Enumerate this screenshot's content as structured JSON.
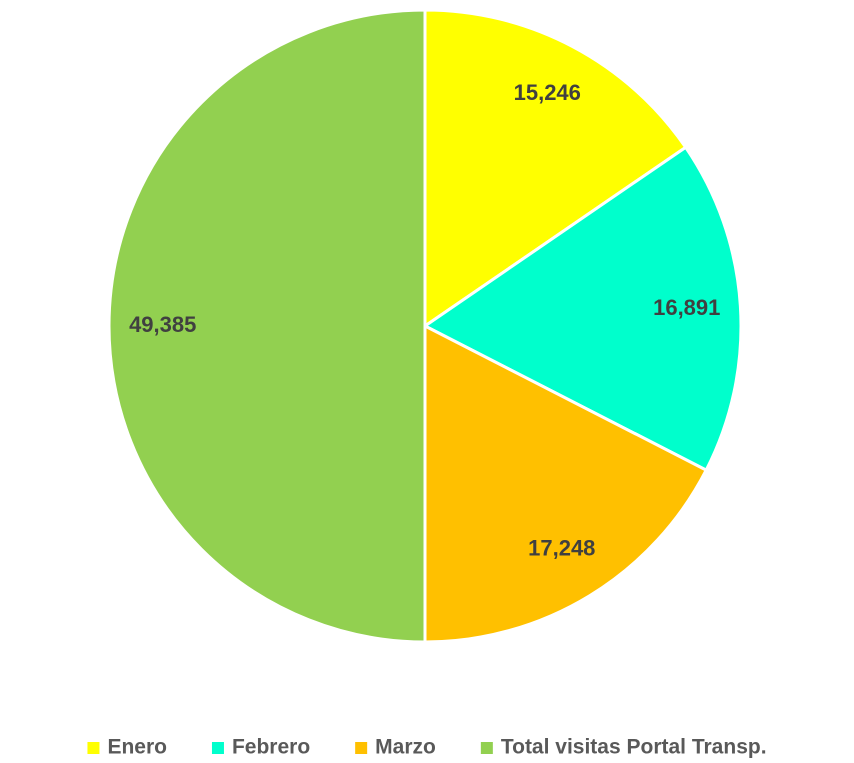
{
  "chart_data": {
    "type": "pie",
    "categories": [
      "Enero",
      "Febrero",
      "Marzo",
      "Total visitas Portal Transp."
    ],
    "values": [
      15246,
      16891,
      17248,
      49385
    ],
    "value_labels": [
      "15,246",
      "16,891",
      "17,248",
      "49,385"
    ],
    "colors": [
      "#FFFF00",
      "#00FFCC",
      "#FFC000",
      "#92D050"
    ],
    "legend": "bottom"
  }
}
